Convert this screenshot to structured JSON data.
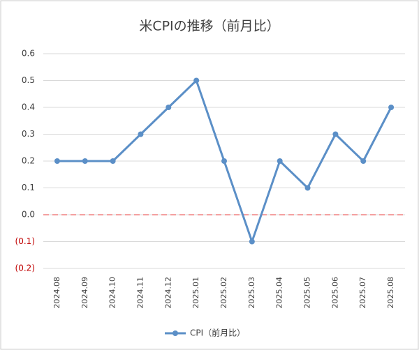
{
  "chart_data": {
    "type": "line",
    "title": "米CPIの推移（前月比）",
    "categories": [
      "2024.08",
      "2024.09",
      "2024.10",
      "2024.11",
      "2024.12",
      "2025.01",
      "2025.02",
      "2025.03",
      "2025.04",
      "2025.05",
      "2025.06",
      "2025.07",
      "2025.08"
    ],
    "series": [
      {
        "name": "CPI（前月比）",
        "color": "#5b8fc7",
        "values": [
          0.2,
          0.2,
          0.2,
          0.3,
          0.4,
          0.5,
          0.2,
          -0.1,
          0.2,
          0.1,
          0.3,
          0.2,
          0.4
        ]
      }
    ],
    "ylim": [
      -0.2,
      0.6
    ],
    "yticks": [
      {
        "value": -0.2,
        "label": "(0.2)"
      },
      {
        "value": -0.1,
        "label": "(0.1)"
      },
      {
        "value": 0,
        "label": "0.0"
      },
      0.1,
      0.2,
      0.3,
      0.4,
      0.5,
      0.6
    ],
    "negative_tick_color": "#c00000",
    "reference_line": {
      "value": 0,
      "color": "#f4a0a0"
    },
    "grid": true,
    "legend": "bottom"
  }
}
